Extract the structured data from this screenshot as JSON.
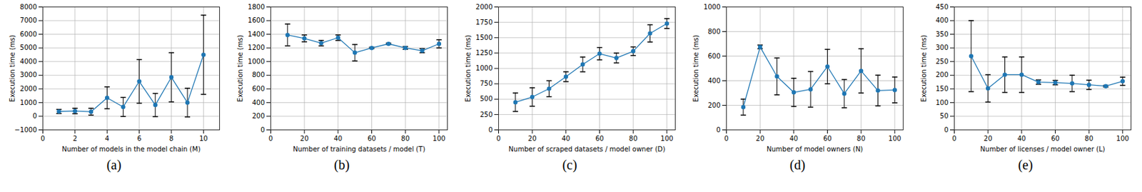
{
  "chart_data": [
    {
      "type": "line",
      "title": "(a)",
      "x_label": "Number of models in the model chain (M)",
      "y_label": "Execution time (ms)",
      "x": [
        1,
        2,
        3,
        4,
        5,
        6,
        7,
        8,
        9,
        10
      ],
      "values": [
        350,
        380,
        330,
        1350,
        680,
        2550,
        820,
        2850,
        1000,
        4500
      ],
      "error": [
        150,
        200,
        250,
        800,
        700,
        1600,
        850,
        1800,
        1050,
        2900
      ],
      "xlim": [
        0,
        11
      ],
      "xticks": [
        0,
        2,
        4,
        6,
        8,
        10
      ],
      "ylim": [
        -1000,
        8000
      ],
      "yticks": [
        -1000,
        0,
        1000,
        2000,
        3000,
        4000,
        5000,
        6000,
        7000,
        8000
      ],
      "color": "#1f77b4",
      "marker": "circle",
      "grid": true
    },
    {
      "type": "line",
      "title": "(b)",
      "x_label": "Number of training datasets / model (T)",
      "y_label": "Execution time (ms)",
      "x": [
        10,
        20,
        30,
        40,
        50,
        60,
        70,
        80,
        90,
        100
      ],
      "values": [
        1390,
        1340,
        1270,
        1350,
        1130,
        1200,
        1260,
        1200,
        1160,
        1260
      ],
      "error": [
        160,
        50,
        40,
        40,
        120,
        10,
        10,
        20,
        30,
        60
      ],
      "xlim": [
        0,
        105
      ],
      "xticks": [
        0,
        20,
        40,
        60,
        80,
        100
      ],
      "ylim": [
        0,
        1800
      ],
      "yticks": [
        0,
        200,
        400,
        600,
        800,
        1000,
        1200,
        1400,
        1600,
        1800
      ],
      "color": "#1f77b4",
      "marker": "circle",
      "grid": true
    },
    {
      "type": "line",
      "title": "(c)",
      "x_label": "Number of scraped datasets / model owner (D)",
      "y_label": "Execution time (ms)",
      "x": [
        10,
        20,
        30,
        40,
        50,
        60,
        70,
        80,
        90,
        100
      ],
      "values": [
        450,
        535,
        670,
        865,
        1065,
        1240,
        1170,
        1280,
        1570,
        1730
      ],
      "error": [
        150,
        150,
        130,
        80,
        120,
        100,
        80,
        70,
        140,
        80
      ],
      "xlim": [
        0,
        105
      ],
      "xticks": [
        0,
        20,
        40,
        60,
        80,
        100
      ],
      "ylim": [
        0,
        2000
      ],
      "yticks": [
        0,
        250,
        500,
        750,
        1000,
        1250,
        1500,
        1750,
        2000
      ],
      "color": "#1f77b4",
      "marker": "circle",
      "grid": true
    },
    {
      "type": "line",
      "title": "(d)",
      "x_label": "Number of model owners (N)",
      "y_label": "Execution time (ms)",
      "x": [
        10,
        20,
        30,
        40,
        50,
        60,
        70,
        80,
        90,
        100
      ],
      "values": [
        185,
        675,
        435,
        305,
        330,
        515,
        295,
        480,
        320,
        325
      ],
      "error": [
        65,
        15,
        150,
        115,
        145,
        140,
        115,
        180,
        125,
        105
      ],
      "xlim": [
        0,
        105
      ],
      "xticks": [
        0,
        20,
        40,
        60,
        80,
        100
      ],
      "ylim": [
        0,
        1000
      ],
      "yticks": [
        0,
        200,
        400,
        600,
        800,
        1000
      ],
      "color": "#1f77b4",
      "marker": "circle",
      "grid": true
    },
    {
      "type": "line",
      "title": "(e)",
      "x_label": "Number of licenses / model owner (L)",
      "y_label": "Execution time (ms)",
      "x": [
        10,
        20,
        30,
        40,
        50,
        60,
        70,
        80,
        90,
        100
      ],
      "values": [
        270,
        152,
        202,
        202,
        175,
        173,
        170,
        165,
        160,
        178
      ],
      "error": [
        130,
        50,
        65,
        65,
        8,
        8,
        30,
        17,
        3,
        15
      ],
      "xlim": [
        0,
        105
      ],
      "xticks": [
        0,
        20,
        40,
        60,
        80,
        100
      ],
      "ylim": [
        0,
        450
      ],
      "yticks": [
        0,
        50,
        100,
        150,
        200,
        250,
        300,
        350,
        400,
        450
      ],
      "color": "#1f77b4",
      "marker": "circle",
      "grid": true
    }
  ]
}
